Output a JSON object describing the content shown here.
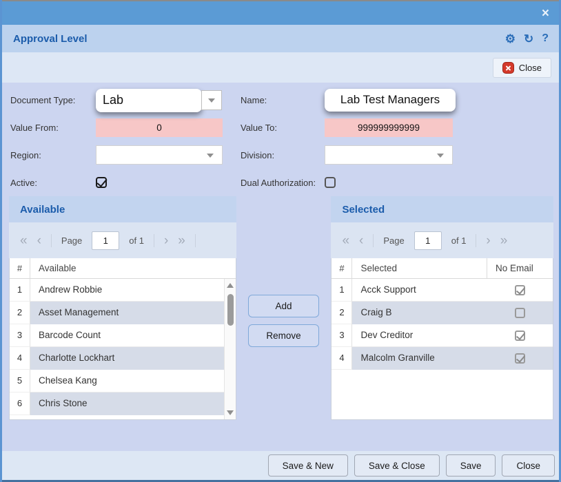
{
  "icons": {
    "window_close": "×",
    "settings": "⚙",
    "refresh": "↻",
    "help": "?",
    "pager_first": "«",
    "pager_prev": "‹",
    "pager_next": "›",
    "pager_last": "»"
  },
  "colors": {
    "titlebar": "#5b9bd5",
    "header_band": "#bcd2ee",
    "accent_text": "#1b5cab",
    "invalid_field_bg": "#f7c7c7",
    "row_stripe": "#d6dce8",
    "close_icon_red": "#d4392b"
  },
  "header": {
    "title": "Approval Level"
  },
  "toolbar": {
    "close_label": "Close"
  },
  "form": {
    "document_type": {
      "label": "Document Type:",
      "value": "Lab"
    },
    "name": {
      "label": "Name:",
      "value": "Lab Test Managers"
    },
    "value_from": {
      "label": "Value From:",
      "value": "0"
    },
    "value_to": {
      "label": "Value To:",
      "value": "999999999999"
    },
    "region": {
      "label": "Region:",
      "value": ""
    },
    "division": {
      "label": "Division:",
      "value": ""
    },
    "active": {
      "label": "Active:",
      "checked": true
    },
    "dual_authorization": {
      "label": "Dual Authorization:",
      "checked": false
    }
  },
  "available_panel": {
    "title": "Available",
    "pagination": {
      "page_label": "Page",
      "page_value": "1",
      "of_label": "of 1"
    },
    "columns": {
      "num": "#",
      "name": "Available"
    },
    "rows": [
      {
        "num": "1",
        "name": "Andrew Robbie"
      },
      {
        "num": "2",
        "name": "Asset Management"
      },
      {
        "num": "3",
        "name": "Barcode Count"
      },
      {
        "num": "4",
        "name": "Charlotte Lockhart"
      },
      {
        "num": "5",
        "name": "Chelsea Kang"
      },
      {
        "num": "6",
        "name": "Chris Stone"
      }
    ]
  },
  "selected_panel": {
    "title": "Selected",
    "pagination": {
      "page_label": "Page",
      "page_value": "1",
      "of_label": "of 1"
    },
    "columns": {
      "num": "#",
      "name": "Selected",
      "check": "No Email"
    },
    "rows": [
      {
        "num": "1",
        "name": "Acck Support",
        "no_email": true
      },
      {
        "num": "2",
        "name": "Craig B",
        "no_email": false
      },
      {
        "num": "3",
        "name": "Dev Creditor",
        "no_email": true
      },
      {
        "num": "4",
        "name": "Malcolm Granville",
        "no_email": true
      }
    ]
  },
  "transfer": {
    "add_label": "Add",
    "remove_label": "Remove"
  },
  "footer": {
    "save_new_label": "Save & New",
    "save_close_label": "Save & Close",
    "save_label": "Save",
    "close_label": "Close"
  }
}
